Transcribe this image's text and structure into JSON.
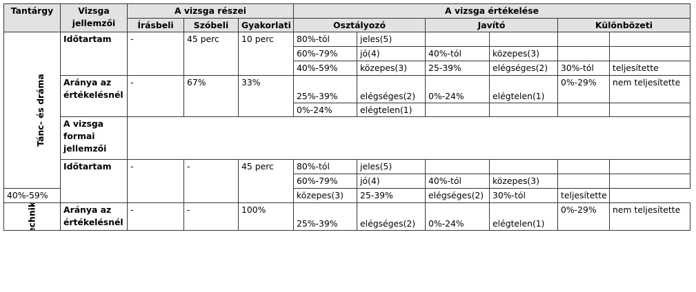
{
  "header": {
    "tantargy": "Tantárgy",
    "jellemzoi": "Vizsga jellemzői",
    "reszei": "A vizsga részei",
    "ertekelese": "A vizsga értékelése",
    "irasbeli": "Írásbeli",
    "szobeli": "Szóbeli",
    "gyakorlati": "Gyakorlati",
    "osztalyozo": "Osztályozó",
    "javito": "Javító",
    "kulonbozeti": "Különbözeti"
  },
  "subjects": [
    {
      "name": "Tánc- és dráma",
      "idotartam_label": "Időtartam",
      "idotartam": {
        "irasbeli": "-",
        "szobeli": "45 perc",
        "gyakorlati": "10 perc"
      },
      "aranya_label": "Aránya az értékelésnél",
      "aranya": {
        "irasbeli": "-",
        "szobeli": "67%",
        "gyakorlati": "33%"
      },
      "formai_label": "A vizsga formai jellemzői",
      "osztalyozo": [
        {
          "range": "80%-tól",
          "grade": "jeles(5)"
        },
        {
          "range": "60%-79%",
          "grade": "jó(4)"
        },
        {
          "range": "40%-59%",
          "grade": "közepes(3)"
        },
        {
          "range": "25%-39%",
          "grade": "elégséges(2)"
        },
        {
          "range": "0%-24%",
          "grade": "elégtelen(1)"
        }
      ],
      "javito": [
        {
          "range": "40%-tól",
          "grade": "közepes(3)"
        },
        {
          "range": "25-39%",
          "grade": "elégséges(2)"
        },
        {
          "range": "0%-24%",
          "grade": "elégtelen(1)"
        }
      ],
      "kulonbozeti": [
        {
          "range": "30%-tól",
          "grade": "teljesítette"
        },
        {
          "range": "0%-29%",
          "grade": "nem teljesítette"
        }
      ]
    },
    {
      "name": "Technika",
      "idotartam_label": "Időtartam",
      "idotartam": {
        "irasbeli": "-",
        "szobeli": "-",
        "gyakorlati": "45 perc"
      },
      "aranya_label": "Aránya az értékelésnél",
      "aranya": {
        "irasbeli": "-",
        "szobeli": "-",
        "gyakorlati": "100%"
      },
      "formai_label": "A vizsga formai jellemzői",
      "osztalyozo": [
        {
          "range": "80%-tól",
          "grade": "jeles(5)"
        },
        {
          "range": "60%-79%",
          "grade": "jó(4)"
        },
        {
          "range": "40%-59%",
          "grade": "közepes(3)"
        },
        {
          "range": "25%-39%",
          "grade": "elégséges(2)"
        },
        {
          "range": "0%-24%",
          "grade": "elégtelen(1)"
        }
      ],
      "javito": [
        {
          "range": "40%-tól",
          "grade": "közepes(3)"
        },
        {
          "range": "25-39%",
          "grade": "elégséges(2)"
        },
        {
          "range": "0%-24%",
          "grade": "elégtelen(1)"
        }
      ],
      "kulonbozeti": [
        {
          "range": "30%-tól",
          "grade": "teljesítette"
        },
        {
          "range": "0%-29%",
          "grade": "nem teljesítette"
        }
      ]
    }
  ]
}
